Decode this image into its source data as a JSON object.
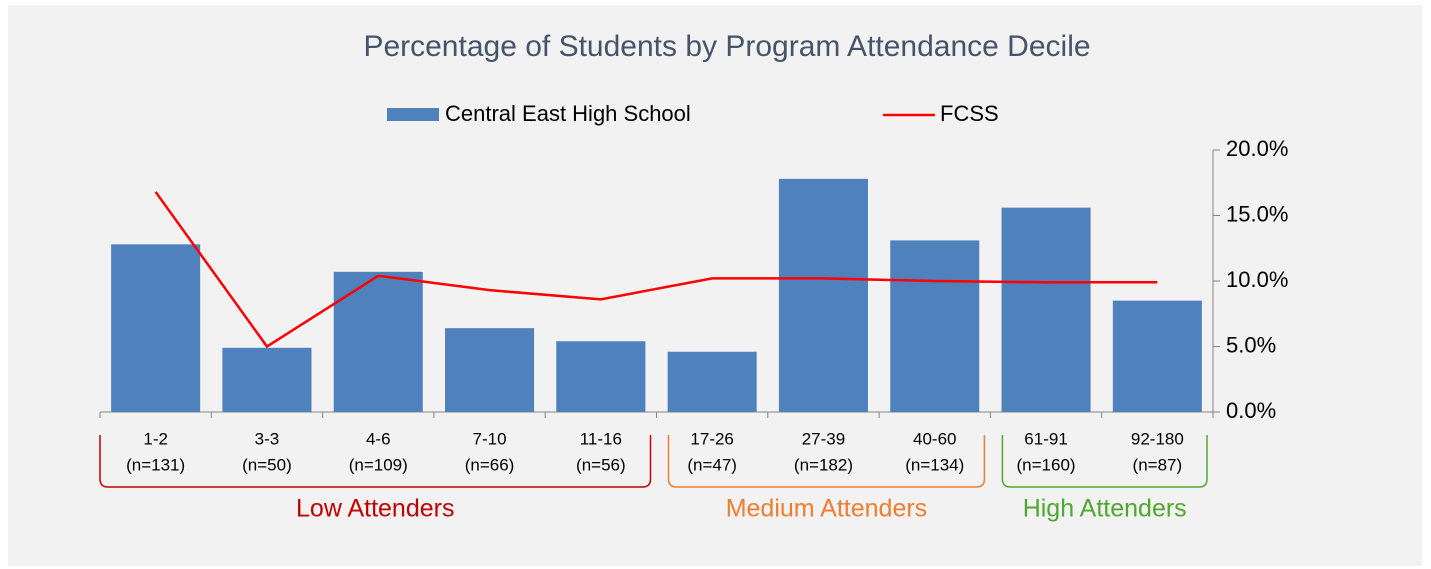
{
  "chart_data": {
    "type": "bar_line",
    "title": "Percentage of Students by Program Attendance Decile",
    "categories": [
      "1-2",
      "3-3",
      "4-6",
      "7-10",
      "11-16",
      "17-26",
      "27-39",
      "40-60",
      "61-91",
      "92-180"
    ],
    "category_counts": [
      "(n=131)",
      "(n=50)",
      "(n=109)",
      "(n=66)",
      "(n=56)",
      "(n=47)",
      "(n=182)",
      "(n=134)",
      "(n=160)",
      "(n=87)"
    ],
    "series": [
      {
        "name": "Central East High School",
        "type": "bar",
        "color": "#4f81bd",
        "values": [
          12.8,
          4.9,
          10.7,
          6.4,
          5.4,
          4.6,
          17.8,
          13.1,
          15.6,
          8.5
        ]
      },
      {
        "name": "FCSS",
        "type": "line",
        "color": "#ff0000",
        "values": [
          16.8,
          5.0,
          10.4,
          9.3,
          8.6,
          10.2,
          10.2,
          10.0,
          9.9,
          9.9
        ]
      }
    ],
    "groups": [
      {
        "name": "Low Attenders",
        "color": "#c00000"
      },
      {
        "name": "Medium Attenders",
        "color": "#ed7d31"
      },
      {
        "name": "High Attenders",
        "color": "#4ea72e"
      }
    ],
    "ylim": [
      0,
      20
    ],
    "yticks": [
      {
        "value": 0,
        "label": "0.0%"
      },
      {
        "value": 5,
        "label": "5.0%"
      },
      {
        "value": 10,
        "label": "10.0%"
      },
      {
        "value": 15,
        "label": "15.0%"
      },
      {
        "value": 20,
        "label": "20.0%"
      }
    ],
    "y_axis_side": "right"
  }
}
